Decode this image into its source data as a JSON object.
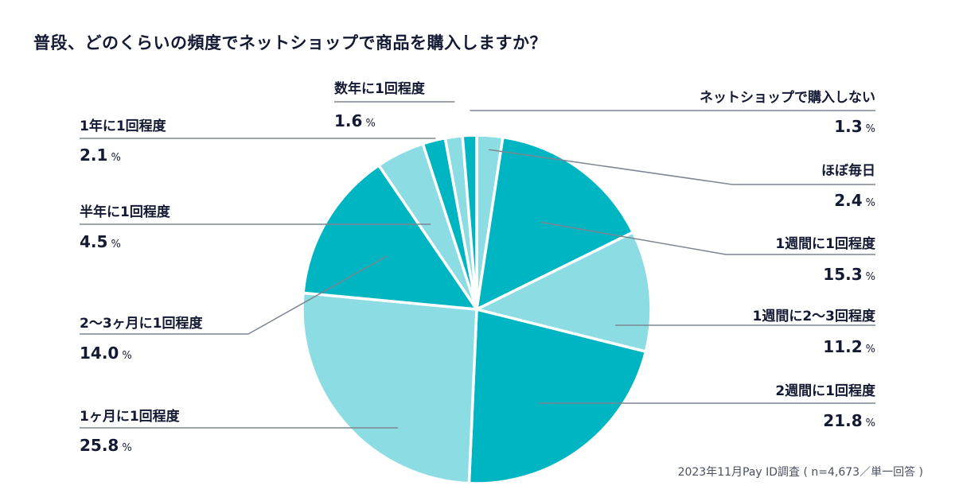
{
  "chart_data": {
    "type": "pie",
    "title": "普段、どのくらいの頻度でネットショップで商品を購入しますか？",
    "start": "12 o'clock, clockwise",
    "unit": "%",
    "slices": [
      {
        "label": "ほぼ毎日",
        "value": 2.4,
        "value_text": "2.4",
        "color": "#8cdde3"
      },
      {
        "label": "1週間に1回程度",
        "value": 15.3,
        "value_text": "15.3",
        "color": "#00b5c2"
      },
      {
        "label": "1週間に2〜3回程度",
        "value": 11.2,
        "value_text": "11.2",
        "color": "#8cdde3"
      },
      {
        "label": "2週間に1回程度",
        "value": 21.8,
        "value_text": "21.8",
        "color": "#00b5c2"
      },
      {
        "label": "1ヶ月に1回程度",
        "value": 25.8,
        "value_text": "25.8",
        "color": "#8cdde3"
      },
      {
        "label": "2〜3ヶ月に1回程度",
        "value": 14.0,
        "value_text": "14.0",
        "color": "#00b5c2"
      },
      {
        "label": "半年に1回程度",
        "value": 4.5,
        "value_text": "4.5",
        "color": "#8cdde3"
      },
      {
        "label": "1年に1回程度",
        "value": 2.1,
        "value_text": "2.1",
        "color": "#00b5c2"
      },
      {
        "label": "数年に1回程度",
        "value": 1.6,
        "value_text": "1.6",
        "color": "#8cdde3"
      },
      {
        "label": "ネットショップで購入しない",
        "value": 1.3,
        "value_text": "1.3",
        "color": "#00b5c2"
      }
    ],
    "percent_sign": "%",
    "note": "2023年11月Pay ID調査 ( n=4,673／単一回答 )"
  }
}
